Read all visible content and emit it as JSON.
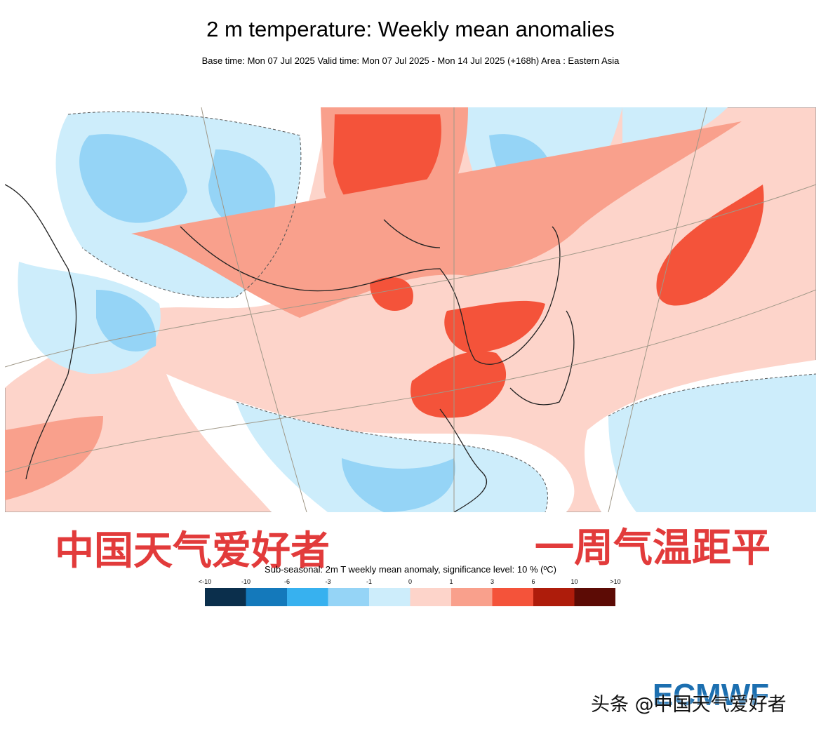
{
  "header": {
    "title": "2 m temperature: Weekly mean anomalies",
    "subtitle": "Base time: Mon 07 Jul 2025 Valid time: Mon 07 Jul 2025 - Mon 14 Jul 2025 (+168h) Area : Eastern Asia"
  },
  "overlay": {
    "left": "中国天气爱好者",
    "right": "一周气温距平"
  },
  "legend": {
    "title": "Sub-seasonal: 2m T weekly mean anomaly, significance level: 10 % (ºC)",
    "labels": [
      "<-10",
      "-10",
      "-6",
      "-3",
      "-1",
      "0",
      "1",
      "3",
      "6",
      "10",
      ">10"
    ],
    "colors": [
      "#0b2f4c",
      "#1479bb",
      "#37b1ef",
      "#95d4f6",
      "#cdedfb",
      "#fdd4ca",
      "#f9a08c",
      "#f4533a",
      "#ae1c0b",
      "#5c0b05"
    ]
  },
  "footer": {
    "watermark": "头条 @中国天气爱好者",
    "logo": "ECMWF"
  }
}
